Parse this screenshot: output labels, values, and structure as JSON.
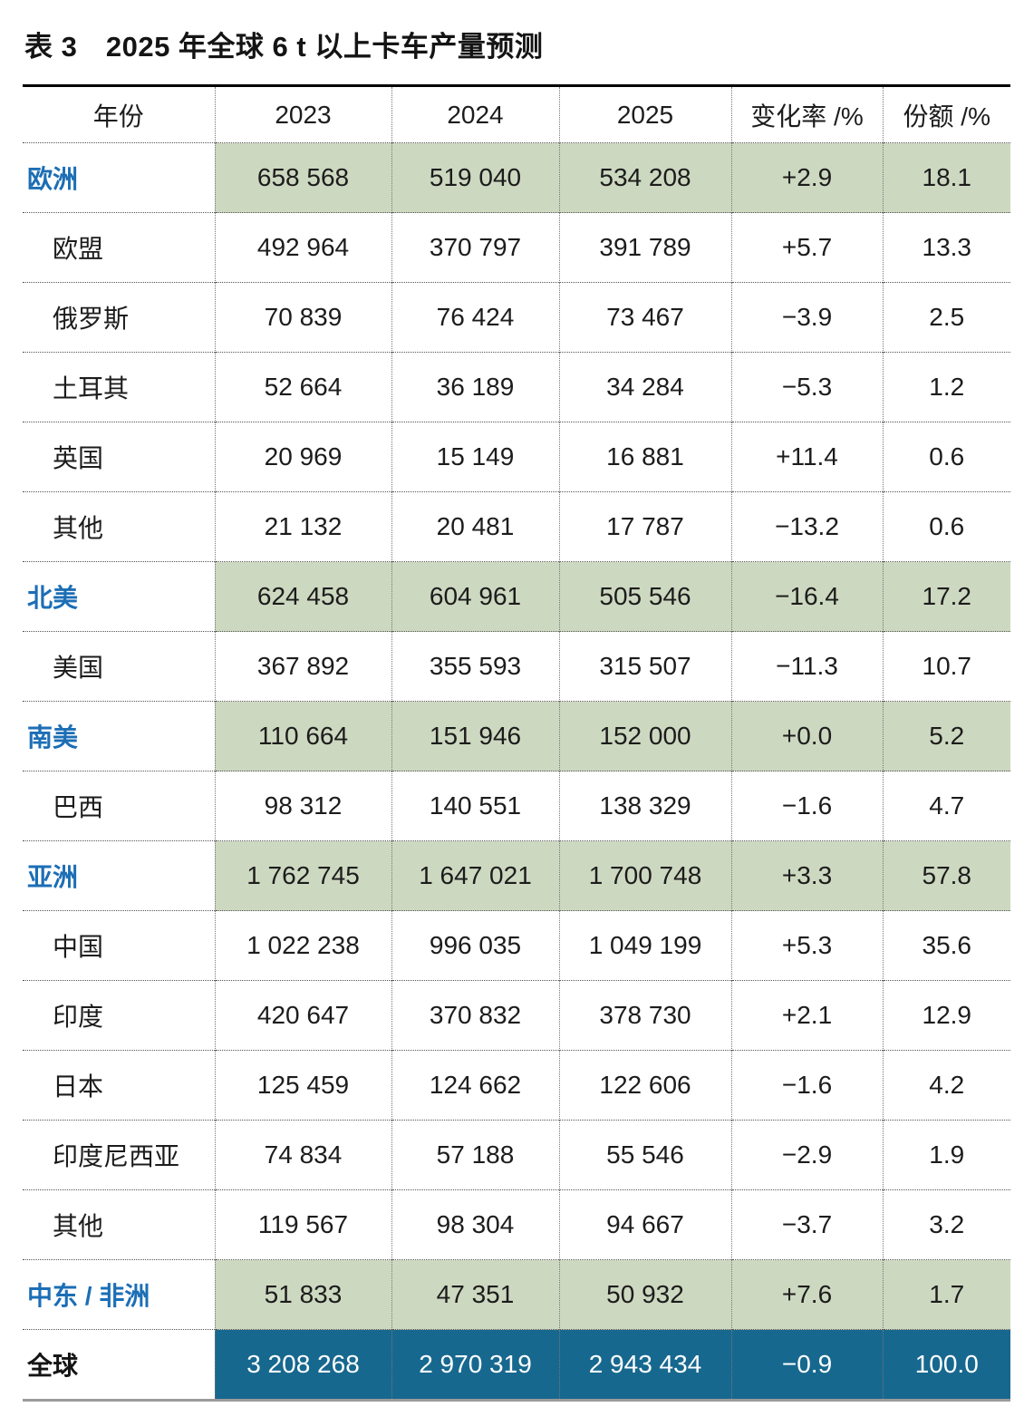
{
  "title": "表 3　2025 年全球 6 t 以上卡车产量预测",
  "colors": {
    "region_row_background": "#cdd8c0",
    "total_row_background": "#17688f",
    "region_label_color": "#1c6eb5",
    "total_row_text_color": "#ffffff"
  },
  "table": {
    "columns": [
      "年份",
      "2023",
      "2024",
      "2025",
      "变化率 /%",
      "份额 /%"
    ],
    "rows": [
      {
        "label": "欧洲",
        "type": "region",
        "values": [
          "658 568",
          "519 040",
          "534 208",
          "+2.9",
          "18.1"
        ]
      },
      {
        "label": "欧盟",
        "type": "country",
        "values": [
          "492 964",
          "370 797",
          "391 789",
          "+5.7",
          "13.3"
        ]
      },
      {
        "label": "俄罗斯",
        "type": "country",
        "values": [
          "70 839",
          "76 424",
          "73 467",
          "−3.9",
          "2.5"
        ]
      },
      {
        "label": "土耳其",
        "type": "country",
        "values": [
          "52 664",
          "36 189",
          "34 284",
          "−5.3",
          "1.2"
        ]
      },
      {
        "label": "英国",
        "type": "country",
        "values": [
          "20 969",
          "15 149",
          "16 881",
          "+11.4",
          "0.6"
        ]
      },
      {
        "label": "其他",
        "type": "country",
        "values": [
          "21 132",
          "20 481",
          "17 787",
          "−13.2",
          "0.6"
        ]
      },
      {
        "label": "北美",
        "type": "region",
        "values": [
          "624 458",
          "604 961",
          "505 546",
          "−16.4",
          "17.2"
        ]
      },
      {
        "label": "美国",
        "type": "country",
        "values": [
          "367 892",
          "355 593",
          "315 507",
          "−11.3",
          "10.7"
        ]
      },
      {
        "label": "南美",
        "type": "region",
        "values": [
          "110 664",
          "151 946",
          "152 000",
          "+0.0",
          "5.2"
        ]
      },
      {
        "label": "巴西",
        "type": "country",
        "values": [
          "98 312",
          "140 551",
          "138 329",
          "−1.6",
          "4.7"
        ]
      },
      {
        "label": "亚洲",
        "type": "region",
        "values": [
          "1 762 745",
          "1 647 021",
          "1 700 748",
          "+3.3",
          "57.8"
        ]
      },
      {
        "label": "中国",
        "type": "country",
        "values": [
          "1 022 238",
          "996 035",
          "1 049 199",
          "+5.3",
          "35.6"
        ]
      },
      {
        "label": "印度",
        "type": "country",
        "values": [
          "420 647",
          "370 832",
          "378 730",
          "+2.1",
          "12.9"
        ]
      },
      {
        "label": "日本",
        "type": "country",
        "values": [
          "125 459",
          "124 662",
          "122 606",
          "−1.6",
          "4.2"
        ]
      },
      {
        "label": "印度尼西亚",
        "type": "country",
        "values": [
          "74 834",
          "57 188",
          "55 546",
          "−2.9",
          "1.9"
        ]
      },
      {
        "label": "其他",
        "type": "country",
        "values": [
          "119 567",
          "98 304",
          "94 667",
          "−3.7",
          "3.2"
        ]
      },
      {
        "label": "中东 / 非洲",
        "type": "region",
        "values": [
          "51 833",
          "47 351",
          "50 932",
          "+7.6",
          "1.7"
        ]
      },
      {
        "label": "全球",
        "type": "total",
        "values": [
          "3 208 268",
          "2 970 319",
          "2 943 434",
          "−0.9",
          "100.0"
        ]
      }
    ]
  }
}
